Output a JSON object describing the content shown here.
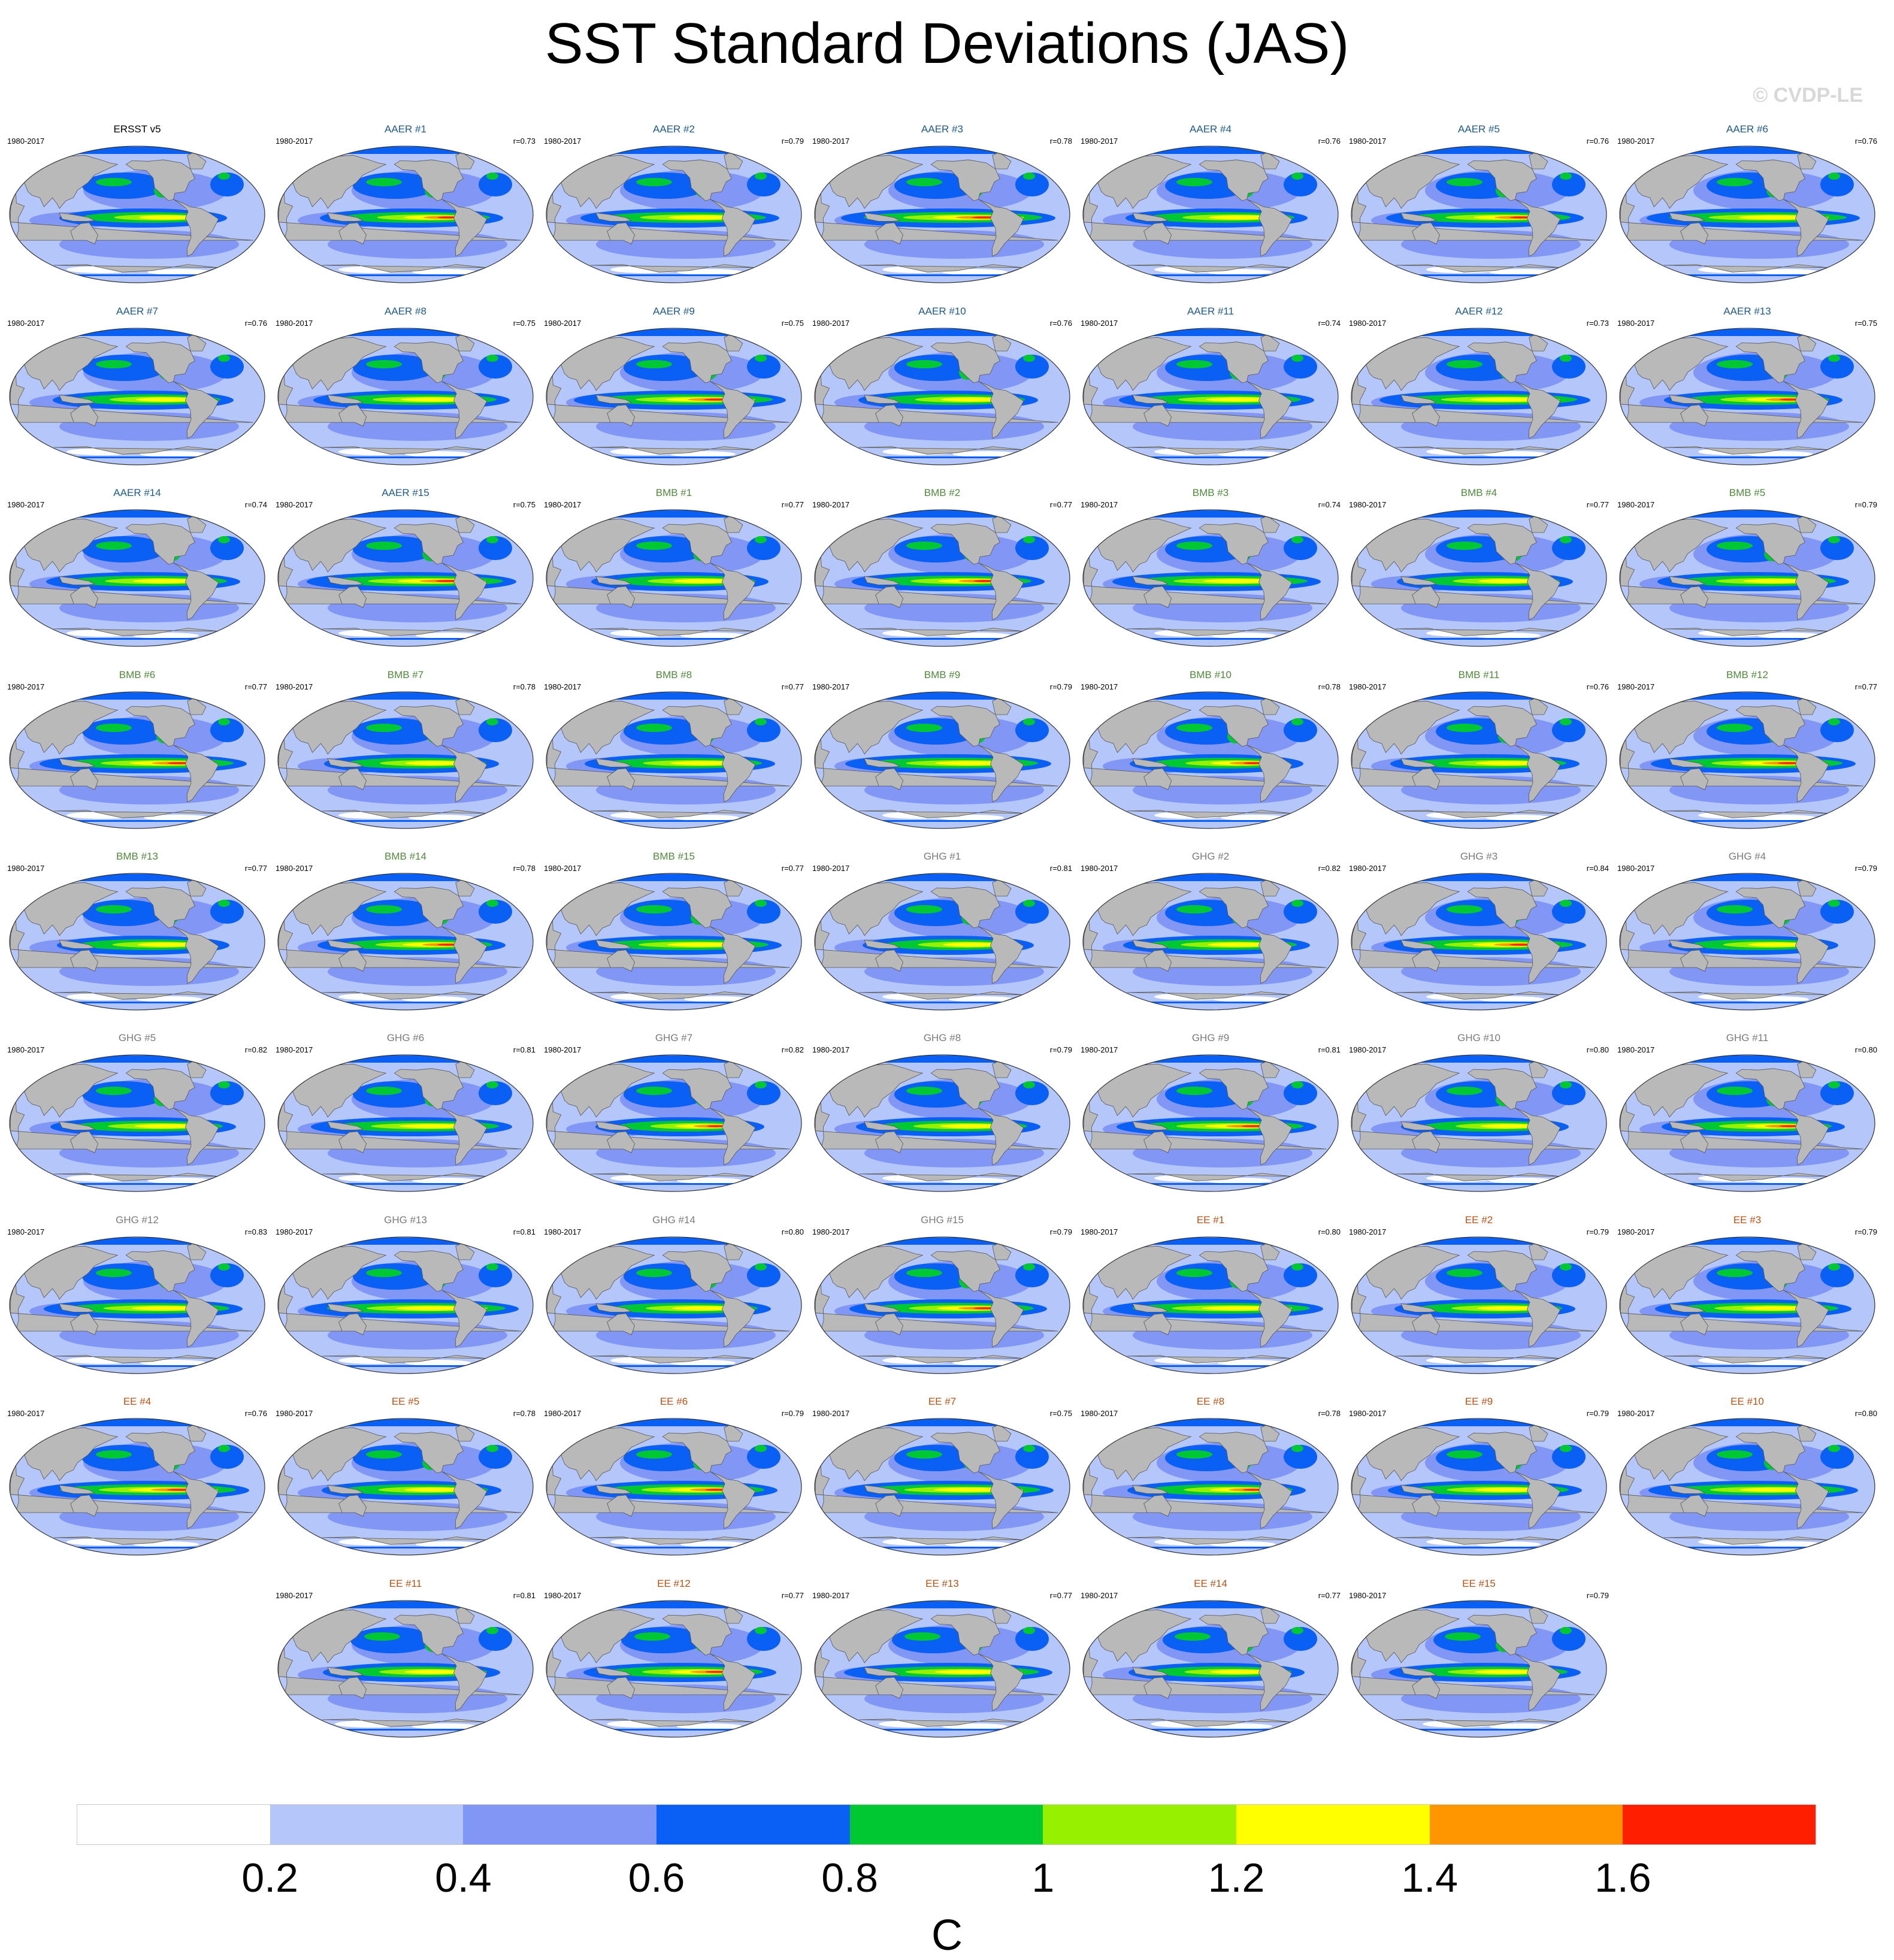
{
  "title": "SST Standard Deviations (JAS)",
  "watermark": "© CVDP-LE",
  "chart_data": {
    "type": "heatmap",
    "title": "SST Standard Deviations (JAS)",
    "units": "C",
    "colorbar": {
      "ticks": [
        "0.2",
        "0.4",
        "0.6",
        "0.8",
        "1",
        "1.2",
        "1.4",
        "1.6"
      ],
      "colors": [
        "#ffffff",
        "#b4c6fa",
        "#8296f6",
        "#0a5ff5",
        "#00c832",
        "#96f000",
        "#ffff00",
        "#ff9600",
        "#ff1e00"
      ]
    },
    "panels": [
      {
        "name": "ERSST v5",
        "period": "1980-2017",
        "r": "",
        "group": "obs"
      },
      {
        "name": "AAER #1",
        "period": "1980-2017",
        "r": "r=0.73",
        "group": "AAER"
      },
      {
        "name": "AAER #2",
        "period": "1980-2017",
        "r": "r=0.79",
        "group": "AAER"
      },
      {
        "name": "AAER #3",
        "period": "1980-2017",
        "r": "r=0.78",
        "group": "AAER"
      },
      {
        "name": "AAER #4",
        "period": "1980-2017",
        "r": "r=0.76",
        "group": "AAER"
      },
      {
        "name": "AAER #5",
        "period": "1980-2017",
        "r": "r=0.76",
        "group": "AAER"
      },
      {
        "name": "AAER #6",
        "period": "1980-2017",
        "r": "r=0.76",
        "group": "AAER"
      },
      {
        "name": "AAER #7",
        "period": "1980-2017",
        "r": "r=0.76",
        "group": "AAER"
      },
      {
        "name": "AAER #8",
        "period": "1980-2017",
        "r": "r=0.75",
        "group": "AAER"
      },
      {
        "name": "AAER #9",
        "period": "1980-2017",
        "r": "r=0.75",
        "group": "AAER"
      },
      {
        "name": "AAER #10",
        "period": "1980-2017",
        "r": "r=0.76",
        "group": "AAER"
      },
      {
        "name": "AAER #11",
        "period": "1980-2017",
        "r": "r=0.74",
        "group": "AAER"
      },
      {
        "name": "AAER #12",
        "period": "1980-2017",
        "r": "r=0.73",
        "group": "AAER"
      },
      {
        "name": "AAER #13",
        "period": "1980-2017",
        "r": "r=0.75",
        "group": "AAER"
      },
      {
        "name": "AAER #14",
        "period": "1980-2017",
        "r": "r=0.74",
        "group": "AAER"
      },
      {
        "name": "AAER #15",
        "period": "1980-2017",
        "r": "r=0.75",
        "group": "AAER"
      },
      {
        "name": "BMB #1",
        "period": "1980-2017",
        "r": "r=0.77",
        "group": "BMB"
      },
      {
        "name": "BMB #2",
        "period": "1980-2017",
        "r": "r=0.77",
        "group": "BMB"
      },
      {
        "name": "BMB #3",
        "period": "1980-2017",
        "r": "r=0.74",
        "group": "BMB"
      },
      {
        "name": "BMB #4",
        "period": "1980-2017",
        "r": "r=0.77",
        "group": "BMB"
      },
      {
        "name": "BMB #5",
        "period": "1980-2017",
        "r": "r=0.79",
        "group": "BMB"
      },
      {
        "name": "BMB #6",
        "period": "1980-2017",
        "r": "r=0.77",
        "group": "BMB"
      },
      {
        "name": "BMB #7",
        "period": "1980-2017",
        "r": "r=0.78",
        "group": "BMB"
      },
      {
        "name": "BMB #8",
        "period": "1980-2017",
        "r": "r=0.77",
        "group": "BMB"
      },
      {
        "name": "BMB #9",
        "period": "1980-2017",
        "r": "r=0.79",
        "group": "BMB"
      },
      {
        "name": "BMB #10",
        "period": "1980-2017",
        "r": "r=0.78",
        "group": "BMB"
      },
      {
        "name": "BMB #11",
        "period": "1980-2017",
        "r": "r=0.76",
        "group": "BMB"
      },
      {
        "name": "BMB #12",
        "period": "1980-2017",
        "r": "r=0.77",
        "group": "BMB"
      },
      {
        "name": "BMB #13",
        "period": "1980-2017",
        "r": "r=0.77",
        "group": "BMB"
      },
      {
        "name": "BMB #14",
        "period": "1980-2017",
        "r": "r=0.78",
        "group": "BMB"
      },
      {
        "name": "BMB #15",
        "period": "1980-2017",
        "r": "r=0.77",
        "group": "BMB"
      },
      {
        "name": "GHG #1",
        "period": "1980-2017",
        "r": "r=0.81",
        "group": "GHG"
      },
      {
        "name": "GHG #2",
        "period": "1980-2017",
        "r": "r=0.82",
        "group": "GHG"
      },
      {
        "name": "GHG #3",
        "period": "1980-2017",
        "r": "r=0.84",
        "group": "GHG"
      },
      {
        "name": "GHG #4",
        "period": "1980-2017",
        "r": "r=0.79",
        "group": "GHG"
      },
      {
        "name": "GHG #5",
        "period": "1980-2017",
        "r": "r=0.82",
        "group": "GHG"
      },
      {
        "name": "GHG #6",
        "period": "1980-2017",
        "r": "r=0.81",
        "group": "GHG"
      },
      {
        "name": "GHG #7",
        "period": "1980-2017",
        "r": "r=0.82",
        "group": "GHG"
      },
      {
        "name": "GHG #8",
        "period": "1980-2017",
        "r": "r=0.79",
        "group": "GHG"
      },
      {
        "name": "GHG #9",
        "period": "1980-2017",
        "r": "r=0.81",
        "group": "GHG"
      },
      {
        "name": "GHG #10",
        "period": "1980-2017",
        "r": "r=0.80",
        "group": "GHG"
      },
      {
        "name": "GHG #11",
        "period": "1980-2017",
        "r": "r=0.80",
        "group": "GHG"
      },
      {
        "name": "GHG #12",
        "period": "1980-2017",
        "r": "r=0.83",
        "group": "GHG"
      },
      {
        "name": "GHG #13",
        "period": "1980-2017",
        "r": "r=0.81",
        "group": "GHG"
      },
      {
        "name": "GHG #14",
        "period": "1980-2017",
        "r": "r=0.80",
        "group": "GHG"
      },
      {
        "name": "GHG #15",
        "period": "1980-2017",
        "r": "r=0.79",
        "group": "GHG"
      },
      {
        "name": "EE #1",
        "period": "1980-2017",
        "r": "r=0.80",
        "group": "EE"
      },
      {
        "name": "EE #2",
        "period": "1980-2017",
        "r": "r=0.79",
        "group": "EE"
      },
      {
        "name": "EE #3",
        "period": "1980-2017",
        "r": "r=0.79",
        "group": "EE"
      },
      {
        "name": "EE #4",
        "period": "1980-2017",
        "r": "r=0.76",
        "group": "EE"
      },
      {
        "name": "EE #5",
        "period": "1980-2017",
        "r": "r=0.78",
        "group": "EE"
      },
      {
        "name": "EE #6",
        "period": "1980-2017",
        "r": "r=0.79",
        "group": "EE"
      },
      {
        "name": "EE #7",
        "period": "1980-2017",
        "r": "r=0.75",
        "group": "EE"
      },
      {
        "name": "EE #8",
        "period": "1980-2017",
        "r": "r=0.78",
        "group": "EE"
      },
      {
        "name": "EE #9",
        "period": "1980-2017",
        "r": "r=0.79",
        "group": "EE"
      },
      {
        "name": "EE #10",
        "period": "1980-2017",
        "r": "r=0.80",
        "group": "EE"
      },
      {
        "name": "EE #11",
        "period": "1980-2017",
        "r": "r=0.81",
        "group": "EE"
      },
      {
        "name": "EE #12",
        "period": "1980-2017",
        "r": "r=0.77",
        "group": "EE"
      },
      {
        "name": "EE #13",
        "period": "1980-2017",
        "r": "r=0.77",
        "group": "EE"
      },
      {
        "name": "EE #14",
        "period": "1980-2017",
        "r": "r=0.77",
        "group": "EE"
      },
      {
        "name": "EE #15",
        "period": "1980-2017",
        "r": "r=0.79",
        "group": "EE"
      }
    ]
  },
  "group_colors": {
    "obs": "#000000",
    "AAER": "#1c5a8c",
    "BMB": "#4f8a3a",
    "GHG": "#7a7a7a",
    "EE": "#b85010"
  },
  "colors": {
    "land": "#b9b9b9",
    "coast": "#555555",
    "ocean_low": "#b4c6fa"
  }
}
